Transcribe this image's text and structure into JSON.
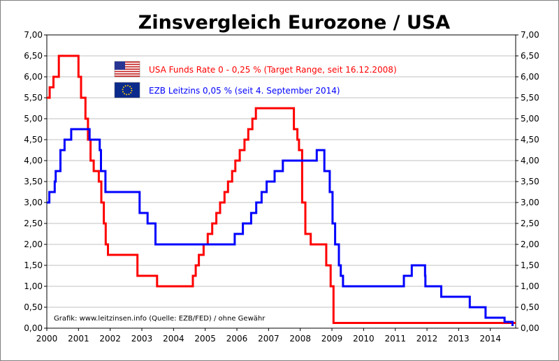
{
  "chart_data": {
    "type": "line",
    "title": "Zinsvergleich Eurozone / USA",
    "xlim": [
      2000,
      2014.8
    ],
    "ylim": [
      0,
      7
    ],
    "x_ticks": [
      "2000",
      "2001",
      "2002",
      "2003",
      "2004",
      "2005",
      "2006",
      "2007",
      "2008",
      "2009",
      "2010",
      "2011",
      "2012",
      "2013",
      "2014"
    ],
    "y_ticks": [
      "0,00",
      "0,50",
      "1,00",
      "1,50",
      "2,00",
      "2,50",
      "3,00",
      "3,50",
      "4,00",
      "4,50",
      "5,00",
      "5,50",
      "6,00",
      "6,50",
      "7,00"
    ],
    "grid": "horizontal",
    "legend_position": "top-center",
    "credit": "Grafik: www.leitzinsen.info (Quelle: EZB/FED) / ohne Gewähr",
    "series": [
      {
        "name": "USA Funds Rate 0 - 0,25 % (Target Range, seit 16.12.2008)",
        "color": "#ff0000",
        "flag": "usa-flag",
        "points": [
          [
            2000.0,
            5.5
          ],
          [
            2000.09,
            5.75
          ],
          [
            2000.21,
            6.0
          ],
          [
            2000.38,
            6.5
          ],
          [
            2001.0,
            6.5
          ],
          [
            2001.0,
            6.0
          ],
          [
            2001.08,
            5.5
          ],
          [
            2001.22,
            5.0
          ],
          [
            2001.3,
            4.5
          ],
          [
            2001.38,
            4.0
          ],
          [
            2001.48,
            3.75
          ],
          [
            2001.64,
            3.5
          ],
          [
            2001.72,
            3.0
          ],
          [
            2001.8,
            2.5
          ],
          [
            2001.86,
            2.0
          ],
          [
            2001.93,
            1.75
          ],
          [
            2002.86,
            1.75
          ],
          [
            2002.86,
            1.25
          ],
          [
            2003.48,
            1.25
          ],
          [
            2003.48,
            1.0
          ],
          [
            2004.49,
            1.0
          ],
          [
            2004.61,
            1.25
          ],
          [
            2004.7,
            1.5
          ],
          [
            2004.8,
            1.75
          ],
          [
            2004.95,
            2.0
          ],
          [
            2005.08,
            2.25
          ],
          [
            2005.22,
            2.5
          ],
          [
            2005.35,
            2.75
          ],
          [
            2005.47,
            3.0
          ],
          [
            2005.61,
            3.25
          ],
          [
            2005.72,
            3.5
          ],
          [
            2005.85,
            3.75
          ],
          [
            2005.95,
            4.0
          ],
          [
            2006.09,
            4.25
          ],
          [
            2006.24,
            4.5
          ],
          [
            2006.36,
            4.75
          ],
          [
            2006.49,
            5.0
          ],
          [
            2006.6,
            5.25
          ],
          [
            2007.71,
            5.25
          ],
          [
            2007.8,
            4.75
          ],
          [
            2007.91,
            4.5
          ],
          [
            2007.96,
            4.25
          ],
          [
            2008.06,
            3.0
          ],
          [
            2008.16,
            2.25
          ],
          [
            2008.33,
            2.0
          ],
          [
            2008.77,
            2.0
          ],
          [
            2008.82,
            1.5
          ],
          [
            2008.96,
            1.0
          ],
          [
            2009.05,
            0.125
          ],
          [
            2014.8,
            0.125
          ]
        ]
      },
      {
        "name": "EZB Leitzins 0,05 % (seit 4. September 2014)",
        "color": "#0000ff",
        "flag": "eu-flag",
        "points": [
          [
            2000.0,
            3.0
          ],
          [
            2000.08,
            3.25
          ],
          [
            2000.25,
            3.5
          ],
          [
            2000.28,
            3.75
          ],
          [
            2000.43,
            4.25
          ],
          [
            2000.56,
            4.5
          ],
          [
            2000.77,
            4.75
          ],
          [
            2001.35,
            4.75
          ],
          [
            2001.35,
            4.5
          ],
          [
            2001.67,
            4.25
          ],
          [
            2001.71,
            3.75
          ],
          [
            2001.85,
            3.25
          ],
          [
            2002.93,
            3.25
          ],
          [
            2002.93,
            2.75
          ],
          [
            2003.18,
            2.75
          ],
          [
            2003.18,
            2.5
          ],
          [
            2003.43,
            2.5
          ],
          [
            2003.43,
            2.0
          ],
          [
            2005.93,
            2.0
          ],
          [
            2005.93,
            2.25
          ],
          [
            2006.19,
            2.25
          ],
          [
            2006.19,
            2.5
          ],
          [
            2006.45,
            2.5
          ],
          [
            2006.45,
            2.75
          ],
          [
            2006.61,
            2.75
          ],
          [
            2006.61,
            3.0
          ],
          [
            2006.78,
            3.0
          ],
          [
            2006.78,
            3.25
          ],
          [
            2006.94,
            3.25
          ],
          [
            2006.94,
            3.5
          ],
          [
            2007.19,
            3.5
          ],
          [
            2007.19,
            3.75
          ],
          [
            2007.45,
            3.75
          ],
          [
            2007.45,
            4.0
          ],
          [
            2008.52,
            4.0
          ],
          [
            2008.52,
            4.25
          ],
          [
            2008.72,
            4.25
          ],
          [
            2008.76,
            3.75
          ],
          [
            2008.93,
            3.25
          ],
          [
            2009.02,
            2.5
          ],
          [
            2009.1,
            2.0
          ],
          [
            2009.22,
            1.5
          ],
          [
            2009.28,
            1.25
          ],
          [
            2009.35,
            1.0
          ],
          [
            2011.27,
            1.0
          ],
          [
            2011.27,
            1.25
          ],
          [
            2011.52,
            1.25
          ],
          [
            2011.52,
            1.5
          ],
          [
            2011.84,
            1.5
          ],
          [
            2011.94,
            1.25
          ],
          [
            2011.95,
            1.0
          ],
          [
            2012.45,
            1.0
          ],
          [
            2012.45,
            0.75
          ],
          [
            2013.35,
            0.75
          ],
          [
            2013.35,
            0.5
          ],
          [
            2013.85,
            0.5
          ],
          [
            2013.85,
            0.25
          ],
          [
            2014.45,
            0.25
          ],
          [
            2014.45,
            0.15
          ],
          [
            2014.7,
            0.15
          ],
          [
            2014.7,
            0.05
          ]
        ]
      }
    ]
  }
}
